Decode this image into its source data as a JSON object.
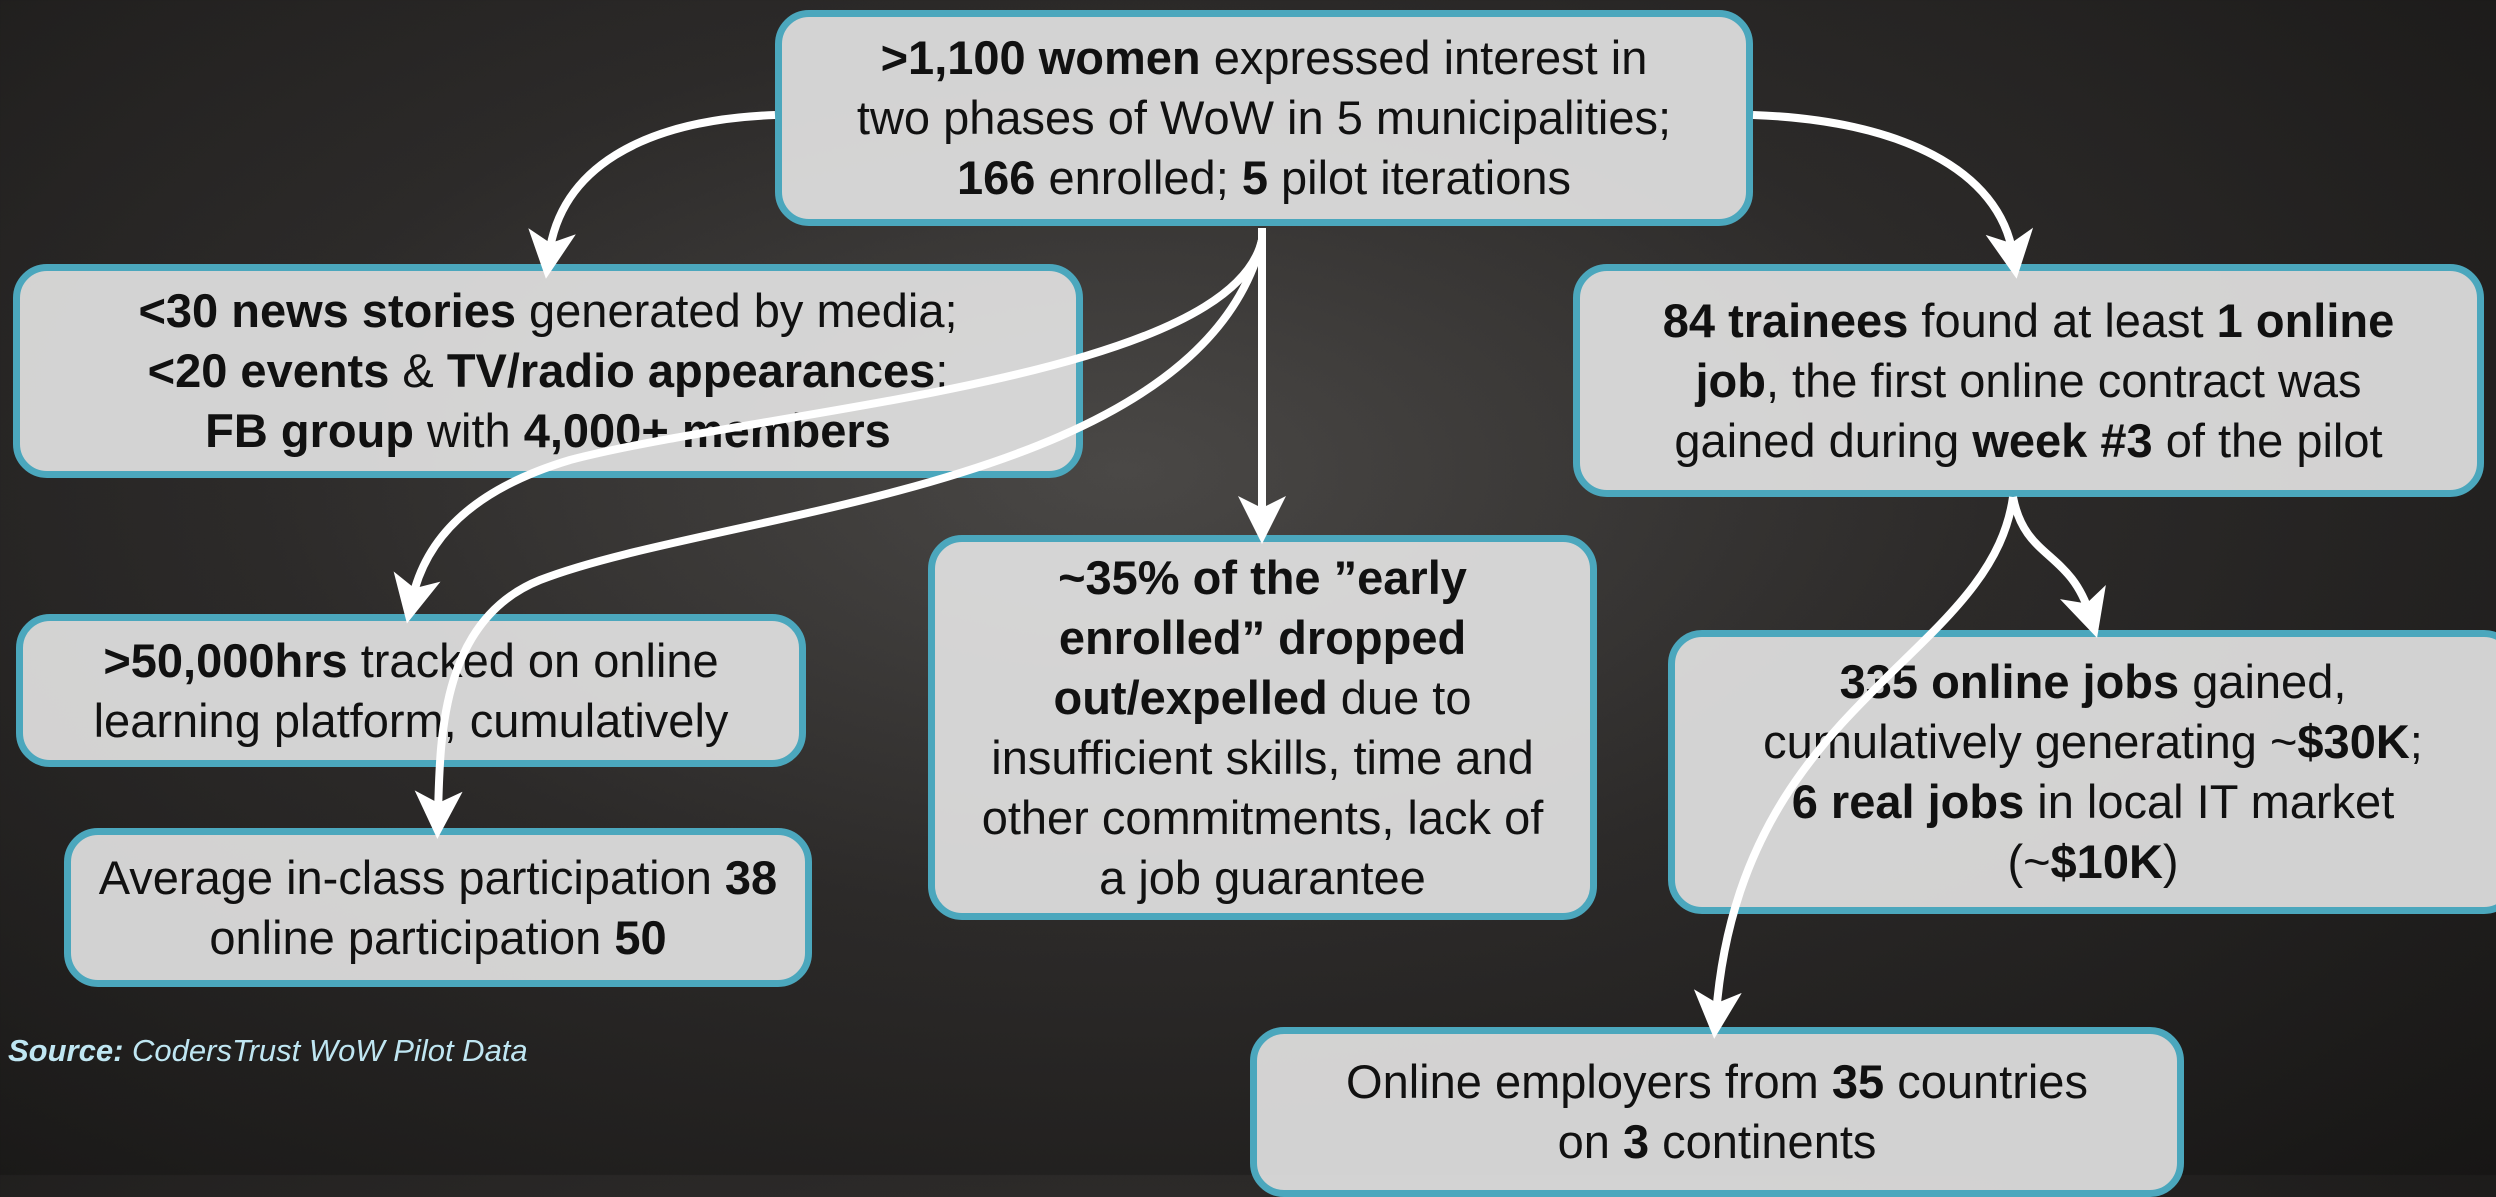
{
  "nodes": [
    {
      "lines": [
        [
          ">1,100 women",
          " expressed interest in"
        ],
        [
          "two phases of WoW in 5 municipalities;"
        ],
        [
          "166",
          " enrolled; ",
          "5",
          " pilot iterations"
        ]
      ]
    },
    {
      "lines": [
        [
          "<30 news stories",
          " generated by media;"
        ],
        [
          "<20 events",
          " & ",
          "TV/radio appearances",
          ";"
        ],
        [
          "FB group",
          " with ",
          "4,000+ members"
        ]
      ]
    },
    {
      "lines": [
        [
          "84 trainees",
          " found at least ",
          "1 online"
        ],
        [
          "job",
          ", the first online contract was"
        ],
        [
          "gained during ",
          "week #3",
          " of the pilot"
        ]
      ]
    },
    {
      "lines": [
        [
          ">50,000hrs",
          " tracked on online"
        ],
        [
          "learning platform, cumulatively"
        ]
      ]
    },
    {
      "lines": [
        [
          "Average in-class participation ",
          "38"
        ],
        [
          "online participation ",
          "50"
        ]
      ]
    },
    {
      "lines": [
        [
          "~35% of the ”early"
        ],
        [
          "enrolled” dropped"
        ],
        [
          "out/expelled",
          " due to"
        ],
        [
          "insufficient skills, time and"
        ],
        [
          "other commitments, lack of"
        ],
        [
          "a job guarantee"
        ]
      ]
    },
    {
      "lines": [
        [
          "335 online jobs",
          " gained,"
        ],
        [
          "cumulatively generating ~",
          "$30K",
          ";"
        ],
        [
          "6 real jobs",
          " in local IT market"
        ],
        [
          "(~",
          "$10K",
          ")"
        ]
      ]
    },
    {
      "lines": [
        [
          "Online employers from ",
          "35",
          " countries"
        ],
        [
          "on ",
          "3",
          " continents"
        ]
      ]
    }
  ],
  "source": {
    "label": "Source:",
    "text": " CodersTrust WoW Pilot Data"
  }
}
